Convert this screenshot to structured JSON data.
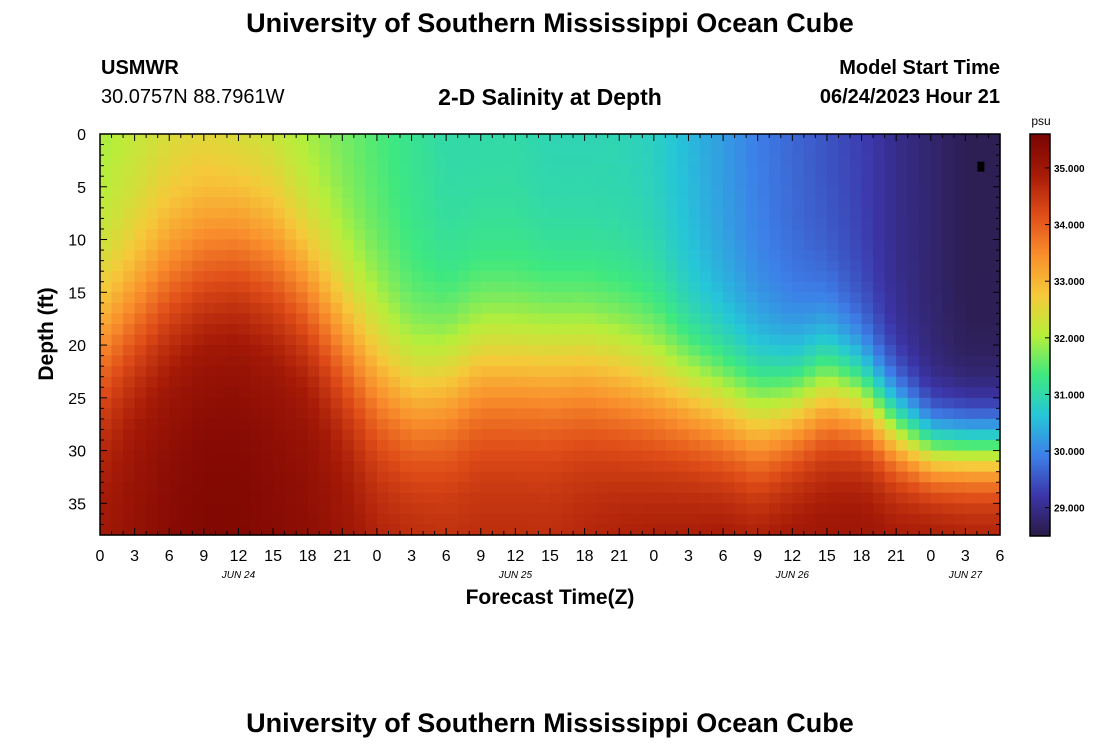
{
  "header": {
    "title": "University of Southern Mississippi Ocean Cube",
    "station_id": "USMWR",
    "coordinates": "30.0757N  88.7961W",
    "subtitle": "2-D Salinity at Depth",
    "model_start_label": "Model Start Time",
    "model_start_value": "06/24/2023 Hour 21"
  },
  "footer": {
    "title": "University of Southern Mississippi Ocean Cube"
  },
  "chart_data": {
    "type": "heatmap",
    "title": "2-D Salinity at Depth",
    "xlabel": "Forecast Time(Z)",
    "ylabel": "Depth (ft)",
    "xlim": [
      0,
      78
    ],
    "ylim": [
      38,
      0
    ],
    "x_tick_labels": [
      "0",
      "3",
      "6",
      "9",
      "12",
      "15",
      "18",
      "21",
      "0",
      "3",
      "6",
      "9",
      "12",
      "15",
      "18",
      "21",
      "0",
      "3",
      "6",
      "9",
      "12",
      "15",
      "18",
      "21",
      "0",
      "3",
      "6"
    ],
    "y_ticks": [
      0,
      5,
      10,
      15,
      20,
      25,
      30,
      35
    ],
    "y_tick_labels": [
      "0",
      "5",
      "10",
      "15",
      "20",
      "25",
      "30",
      "35"
    ],
    "date_labels": [
      {
        "hour": 12,
        "text": "JUN 24"
      },
      {
        "hour": 36,
        "text": "JUN 25"
      },
      {
        "hour": 60,
        "text": "JUN 26"
      },
      {
        "hour": 75,
        "text": "JUN 27"
      }
    ],
    "grid_resolution": {
      "dx_hours": 1,
      "dz_ft": 1
    },
    "colorbar": {
      "units": "psu",
      "min": 28.5,
      "max": 35.6,
      "tick_values": [
        29.0,
        30.0,
        31.0,
        32.0,
        33.0,
        34.0,
        35.0
      ],
      "tick_labels": [
        "29.000",
        "30.000",
        "31.000",
        "32.000",
        "33.000",
        "34.000",
        "35.000"
      ],
      "colors": [
        "#2a1a45",
        "#3c35a8",
        "#3d7fe8",
        "#25c6d8",
        "#3ee880",
        "#b8ee3a",
        "#f6c93a",
        "#f98e2c",
        "#df4c18",
        "#a51a07",
        "#7a0402"
      ]
    },
    "surface_salinity_psu": {
      "hours": [
        0,
        3,
        6,
        9,
        12,
        15,
        18,
        21,
        24,
        27,
        30,
        33,
        36,
        39,
        42,
        45,
        48,
        51,
        54,
        57,
        60,
        63,
        66,
        69,
        72,
        75,
        78
      ],
      "values": [
        31.9,
        32.1,
        32.2,
        32.2,
        32.0,
        31.9,
        31.8,
        31.6,
        31.4,
        31.2,
        31.0,
        31.0,
        31.0,
        30.9,
        30.9,
        30.9,
        30.8,
        30.5,
        30.2,
        29.9,
        29.7,
        29.5,
        29.3,
        29.0,
        28.8,
        28.6,
        28.6
      ]
    },
    "bottom_salinity_psu": {
      "hours": [
        0,
        3,
        6,
        9,
        12,
        15,
        18,
        21,
        24,
        27,
        30,
        33,
        36,
        39,
        42,
        45,
        48,
        51,
        54,
        57,
        60,
        63,
        66,
        69,
        72,
        75,
        78
      ],
      "values": [
        35.0,
        35.2,
        35.4,
        35.5,
        35.5,
        35.4,
        35.3,
        35.1,
        34.9,
        34.8,
        34.7,
        34.7,
        34.7,
        34.7,
        34.8,
        34.9,
        35.0,
        35.0,
        35.1,
        35.1,
        35.1,
        35.1,
        35.1,
        35.0,
        35.0,
        34.9,
        34.9
      ]
    },
    "halocline_depth_ft": {
      "hours": [
        0,
        3,
        6,
        9,
        12,
        15,
        18,
        21,
        24,
        27,
        30,
        33,
        36,
        39,
        42,
        45,
        48,
        51,
        54,
        57,
        60,
        63,
        66,
        69,
        72,
        75,
        78
      ],
      "values": [
        20,
        17,
        14,
        12,
        11,
        12,
        15,
        19,
        23,
        25,
        24,
        22,
        22,
        22,
        22,
        23,
        24,
        25,
        26,
        27,
        26,
        24,
        25,
        28,
        30,
        30,
        30
      ]
    },
    "cline_thickness_ft": {
      "hours": [
        0,
        3,
        6,
        9,
        12,
        15,
        18,
        21,
        24,
        27,
        30,
        33,
        36,
        39,
        42,
        45,
        48,
        51,
        54,
        57,
        60,
        63,
        66,
        69,
        72,
        75,
        78
      ],
      "values": [
        11,
        11,
        12,
        12,
        12,
        12,
        11,
        11,
        11,
        10,
        10,
        10,
        10,
        10,
        10,
        10,
        10,
        9,
        9,
        9,
        8,
        8,
        7,
        6,
        5,
        5,
        5
      ]
    },
    "markers": [
      {
        "hour": 76.3,
        "depth_ft": 3,
        "label": "black marker"
      }
    ]
  }
}
